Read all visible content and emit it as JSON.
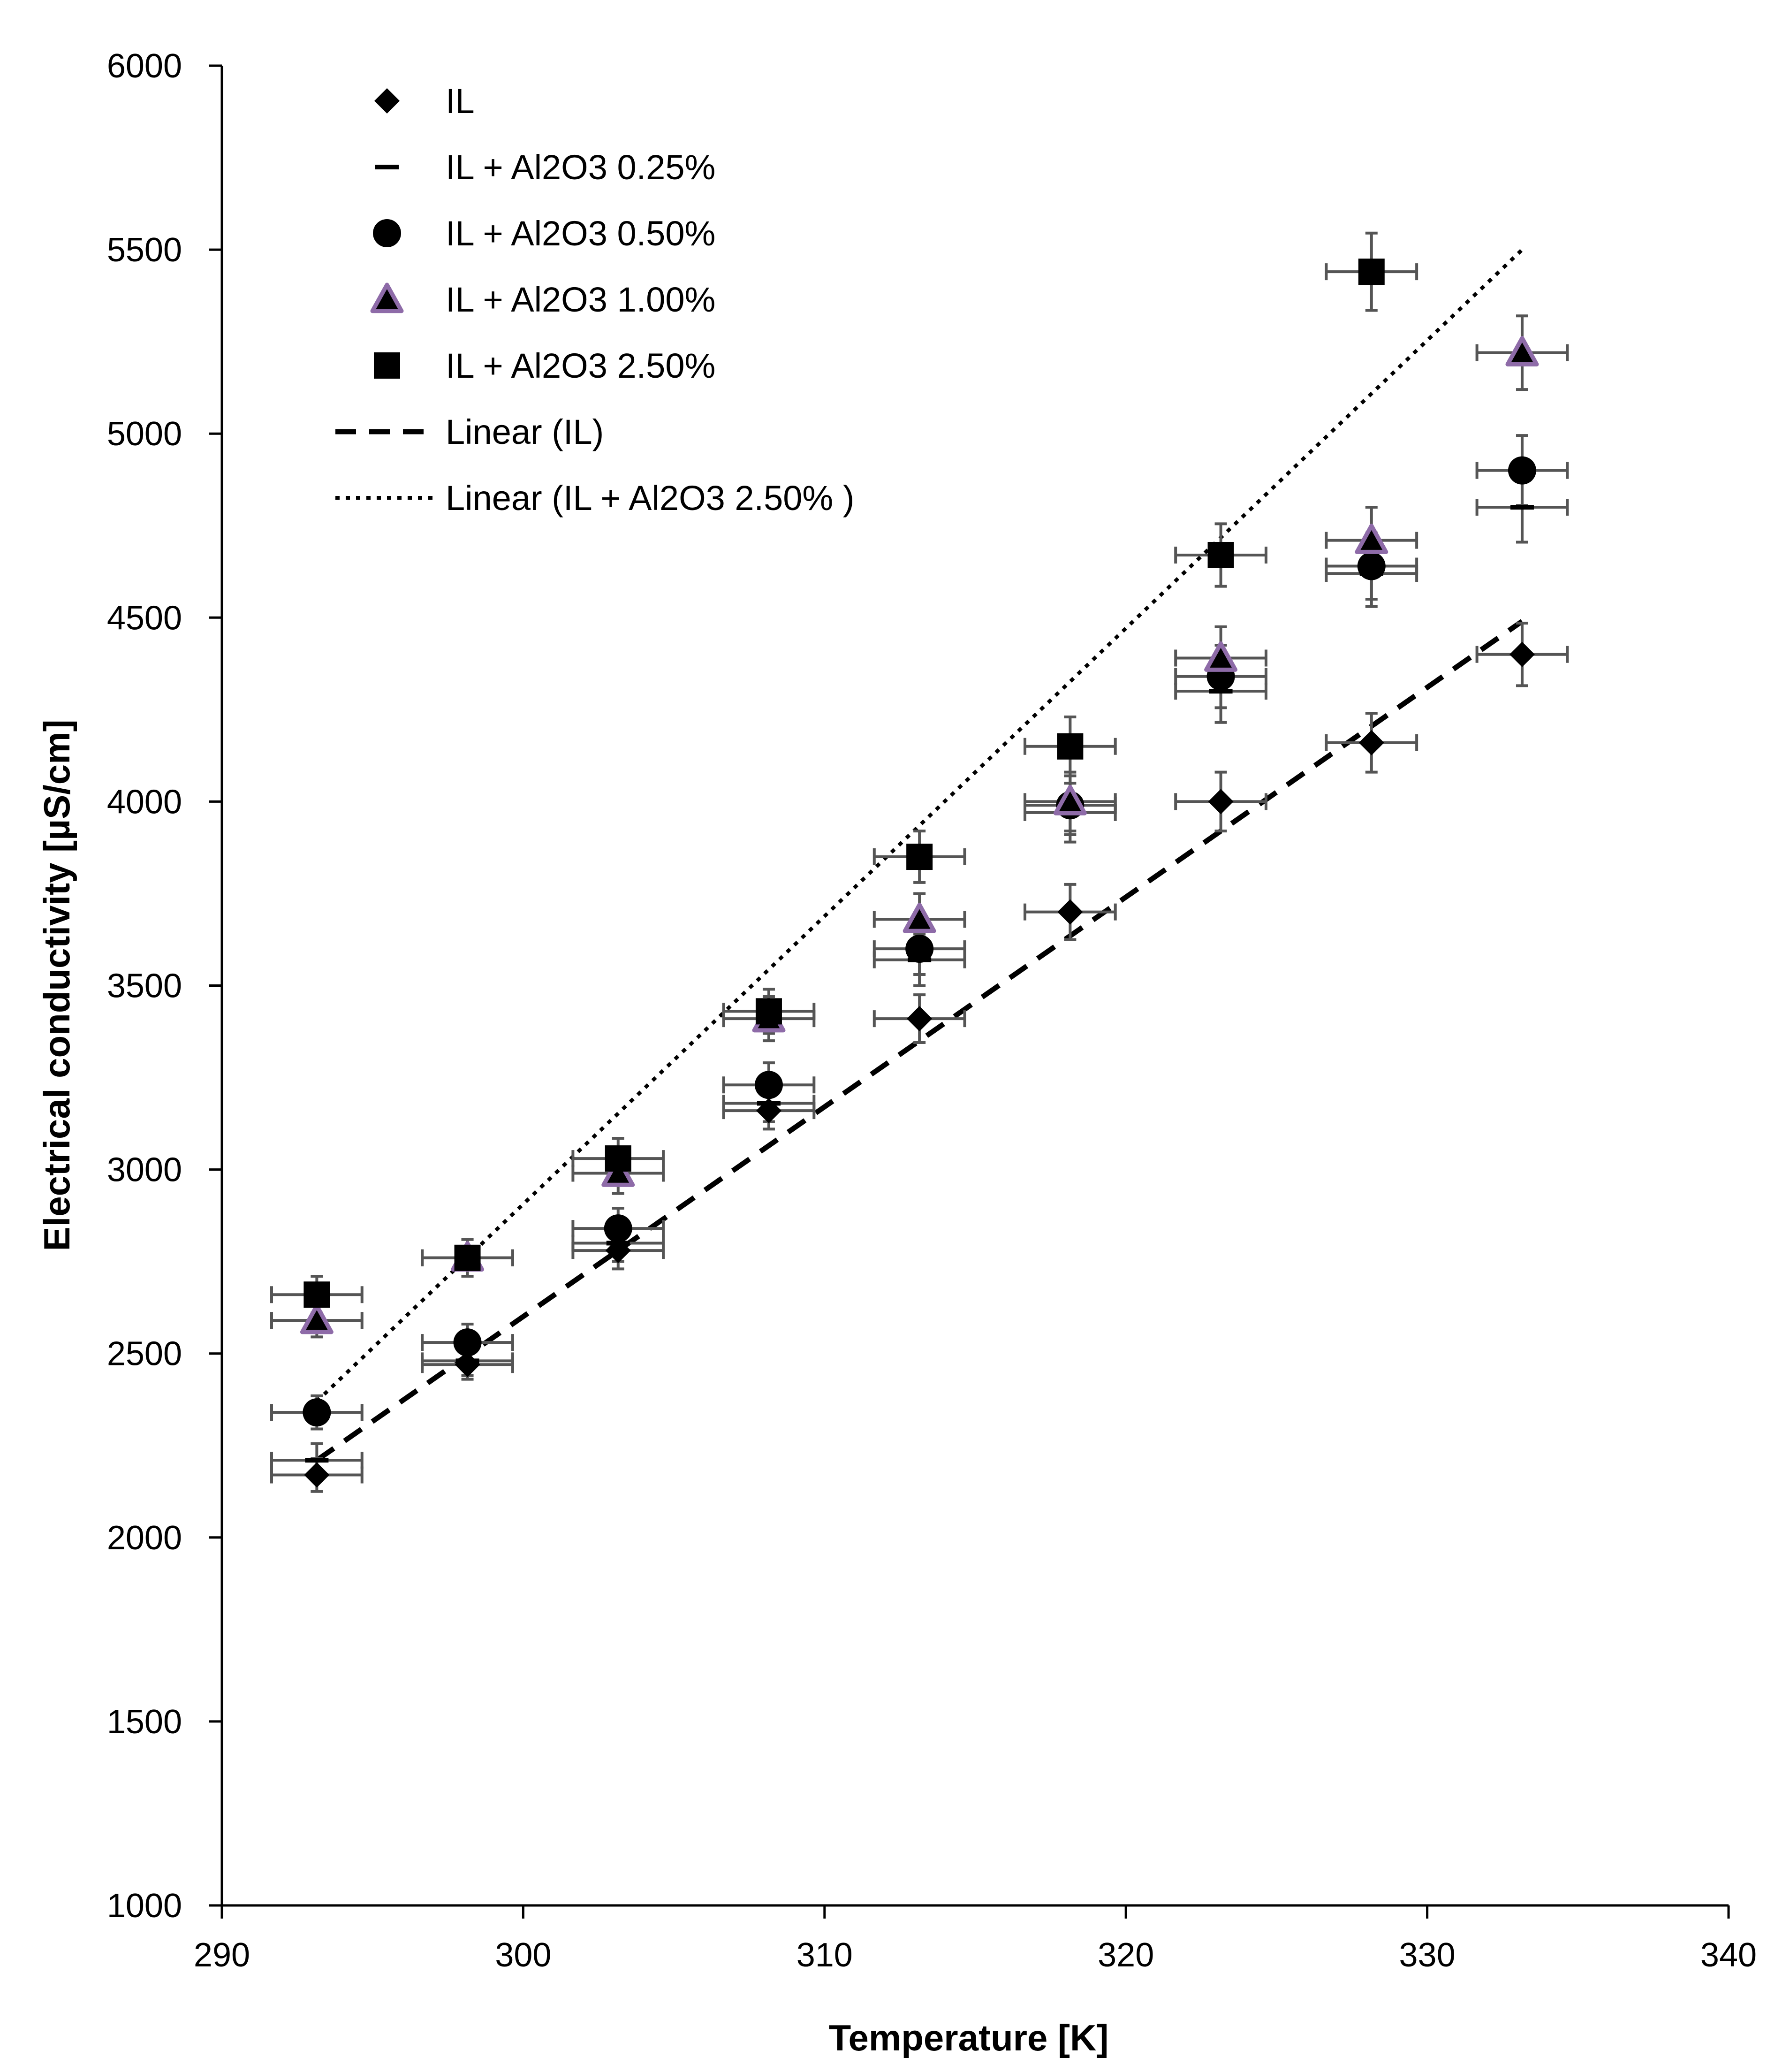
{
  "chart_data": {
    "type": "scatter",
    "title": "",
    "xlabel": "Temperature [K]",
    "ylabel": "Electrical conductivity [µS/cm]",
    "xlim": [
      290,
      340
    ],
    "ylim": [
      1000,
      6000
    ],
    "xticks": [
      290,
      300,
      310,
      320,
      330,
      340
    ],
    "yticks": [
      1000,
      1500,
      2000,
      2500,
      3000,
      3500,
      4000,
      4500,
      5000,
      5500,
      6000
    ],
    "grid": false,
    "legend_position": "top-left",
    "x_error": 1.5,
    "series": [
      {
        "name": "IL",
        "marker": "diamond",
        "color": "#000000",
        "x": [
          293.15,
          298.15,
          303.15,
          308.15,
          313.15,
          318.15,
          323.15,
          328.15,
          333.15
        ],
        "y": [
          2170,
          2470,
          2780,
          3160,
          3410,
          3700,
          4000,
          4160,
          4400
        ],
        "y_err": [
          45,
          40,
          50,
          50,
          65,
          75,
          80,
          80,
          85
        ]
      },
      {
        "name": "IL + Al2O3 0.25%",
        "marker": "dash",
        "color": "#000000",
        "x": [
          293.15,
          298.15,
          303.15,
          308.15,
          313.15,
          318.15,
          323.15,
          328.15,
          333.15
        ],
        "y": [
          2210,
          2480,
          2800,
          3180,
          3570,
          3970,
          4300,
          4620,
          4800
        ],
        "y_err": [
          45,
          40,
          50,
          50,
          70,
          80,
          85,
          90,
          95
        ]
      },
      {
        "name": "IL + Al2O3 0.50%",
        "marker": "circle",
        "color": "#000000",
        "x": [
          293.15,
          298.15,
          303.15,
          308.15,
          313.15,
          318.15,
          323.15,
          328.15,
          333.15
        ],
        "y": [
          2340,
          2530,
          2840,
          3230,
          3600,
          3990,
          4340,
          4640,
          4900
        ],
        "y_err": [
          45,
          50,
          55,
          60,
          70,
          80,
          85,
          90,
          95
        ]
      },
      {
        "name": "IL + Al2O3 1.00%",
        "marker": "triangle",
        "color": "#000000",
        "edge_color": "#8E6BA8",
        "x": [
          293.15,
          298.15,
          303.15,
          308.15,
          313.15,
          318.15,
          323.15,
          328.15,
          333.15
        ],
        "y": [
          2590,
          2760,
          2990,
          3410,
          3680,
          4000,
          4390,
          4710,
          5220
        ],
        "y_err": [
          45,
          50,
          55,
          60,
          70,
          80,
          85,
          90,
          100
        ]
      },
      {
        "name": "IL + Al2O3 2.50%",
        "marker": "square",
        "color": "#000000",
        "x": [
          293.15,
          298.15,
          303.15,
          308.15,
          313.15,
          318.15,
          323.15,
          328.15,
          333.15
        ],
        "y": [
          2660,
          2760,
          3030,
          3430,
          3850,
          4150,
          4670,
          5440,
          5220
        ],
        "y_err": [
          50,
          50,
          55,
          60,
          70,
          80,
          85,
          105,
          100
        ],
        "hidden_points": [
          8
        ]
      }
    ],
    "trendlines": [
      {
        "name": "Linear (IL)",
        "style": "dashed",
        "color": "#000000",
        "x": [
          293.15,
          333.15
        ],
        "y": [
          2210,
          4490
        ]
      },
      {
        "name": "Linear (IL + Al2O3 2.50% )",
        "style": "dotted",
        "color": "#000000",
        "x": [
          293.15,
          333.15
        ],
        "y": [
          2370,
          5500
        ]
      }
    ]
  }
}
